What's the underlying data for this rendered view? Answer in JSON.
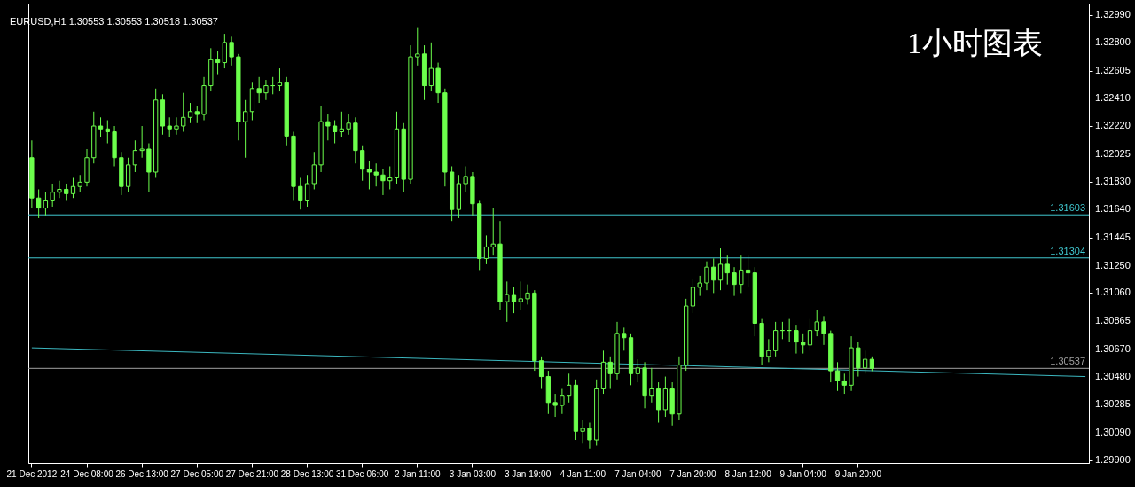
{
  "chart_data": {
    "type": "candlestick",
    "title": "EURUSD,H1  1.30553 1.30553 1.30518 1.30537",
    "annotations": [
      "1小时图表"
    ],
    "color": "#6cff4c",
    "categories": [
      "21 Dec 2012",
      null,
      null,
      null,
      null,
      null,
      null,
      null,
      "24 Dec 08:00",
      null,
      null,
      null,
      null,
      null,
      null,
      null,
      "26 Dec 13:00",
      null,
      null,
      null,
      null,
      null,
      null,
      null,
      "27 Dec 05:00",
      null,
      null,
      null,
      null,
      null,
      null,
      null,
      "27 Dec 21:00",
      null,
      null,
      null,
      null,
      null,
      null,
      null,
      "28 Dec 13:00",
      null,
      null,
      null,
      null,
      null,
      null,
      null,
      "31 Dec 06:00",
      null,
      null,
      null,
      null,
      null,
      null,
      null,
      "2 Jan 11:00",
      null,
      null,
      null,
      null,
      null,
      null,
      null,
      "3 Jan 03:00",
      null,
      null,
      null,
      null,
      null,
      null,
      null,
      "3 Jan 19:00",
      null,
      null,
      null,
      null,
      null,
      null,
      null,
      "4 Jan 11:00",
      null,
      null,
      null,
      null,
      null,
      null,
      null,
      "7 Jan 04:00",
      null,
      null,
      null,
      null,
      null,
      null,
      null,
      "7 Jan 20:00",
      null,
      null,
      null,
      null,
      null,
      null,
      null,
      "8 Jan 12:00",
      null,
      null,
      null,
      null,
      null,
      null,
      null,
      "9 Jan 04:00",
      null,
      null,
      null,
      null,
      null,
      null,
      null,
      "9 Jan 20:00",
      null,
      null,
      null,
      null,
      null,
      null,
      null,
      null,
      null,
      null,
      null,
      null,
      null,
      null,
      null,
      null,
      null,
      null,
      null,
      null,
      null,
      null,
      null,
      null,
      null,
      null,
      null,
      null,
      null,
      null,
      null,
      null,
      null
    ],
    "ohlc": [
      [
        1.32,
        1.3212,
        1.3165,
        1.3172
      ],
      [
        1.3172,
        1.3178,
        1.3158,
        1.3165
      ],
      [
        1.3165,
        1.3176,
        1.316,
        1.317
      ],
      [
        1.317,
        1.3182,
        1.3166,
        1.3176
      ],
      [
        1.3176,
        1.3184,
        1.3172,
        1.3178
      ],
      [
        1.3178,
        1.3182,
        1.317,
        1.3175
      ],
      [
        1.3175,
        1.3186,
        1.3172,
        1.318
      ],
      [
        1.318,
        1.3188,
        1.3176,
        1.3183
      ],
      [
        1.3183,
        1.3206,
        1.318,
        1.32
      ],
      [
        1.32,
        1.3232,
        1.3196,
        1.3222
      ],
      [
        1.3222,
        1.3228,
        1.3214,
        1.322
      ],
      [
        1.322,
        1.3226,
        1.321,
        1.3218
      ],
      [
        1.3218,
        1.3222,
        1.3194,
        1.32
      ],
      [
        1.32,
        1.3204,
        1.3174,
        1.318
      ],
      [
        1.318,
        1.32,
        1.3176,
        1.3195
      ],
      [
        1.3195,
        1.3212,
        1.319,
        1.3205
      ],
      [
        1.3205,
        1.3222,
        1.32,
        1.3206
      ],
      [
        1.3206,
        1.321,
        1.3176,
        1.319
      ],
      [
        1.319,
        1.3248,
        1.3186,
        1.324
      ],
      [
        1.324,
        1.3244,
        1.3216,
        1.3222
      ],
      [
        1.3222,
        1.3228,
        1.3214,
        1.322
      ],
      [
        1.322,
        1.3228,
        1.3216,
        1.3222
      ],
      [
        1.3222,
        1.3245,
        1.3218,
        1.3228
      ],
      [
        1.3228,
        1.3238,
        1.3224,
        1.3232
      ],
      [
        1.3232,
        1.3236,
        1.3224,
        1.323
      ],
      [
        1.323,
        1.3256,
        1.3226,
        1.325
      ],
      [
        1.325,
        1.3276,
        1.3246,
        1.3268
      ],
      [
        1.3268,
        1.3274,
        1.3258,
        1.3266
      ],
      [
        1.3266,
        1.3286,
        1.3262,
        1.328
      ],
      [
        1.328,
        1.3284,
        1.3264,
        1.327
      ],
      [
        1.327,
        1.3272,
        1.3212,
        1.3225
      ],
      [
        1.3225,
        1.324,
        1.32,
        1.3232
      ],
      [
        1.3232,
        1.3252,
        1.3226,
        1.3248
      ],
      [
        1.3248,
        1.3256,
        1.3238,
        1.3245
      ],
      [
        1.3245,
        1.3254,
        1.324,
        1.325
      ],
      [
        1.325,
        1.3256,
        1.3244,
        1.325
      ],
      [
        1.325,
        1.3262,
        1.3246,
        1.3252
      ],
      [
        1.3252,
        1.3256,
        1.3208,
        1.3215
      ],
      [
        1.3215,
        1.3218,
        1.317,
        1.318
      ],
      [
        1.318,
        1.3186,
        1.3164,
        1.317
      ],
      [
        1.317,
        1.3188,
        1.3166,
        1.3182
      ],
      [
        1.3182,
        1.3204,
        1.3178,
        1.3195
      ],
      [
        1.3195,
        1.3236,
        1.319,
        1.3225
      ],
      [
        1.3225,
        1.323,
        1.3212,
        1.3222
      ],
      [
        1.3222,
        1.3226,
        1.321,
        1.3218
      ],
      [
        1.3218,
        1.3232,
        1.3214,
        1.322
      ],
      [
        1.322,
        1.323,
        1.3216,
        1.3224
      ],
      [
        1.3224,
        1.3228,
        1.3196,
        1.3205
      ],
      [
        1.3205,
        1.3208,
        1.3184,
        1.3192
      ],
      [
        1.3192,
        1.3198,
        1.3178,
        1.319
      ],
      [
        1.319,
        1.3196,
        1.318,
        1.3188
      ],
      [
        1.3188,
        1.3192,
        1.3174,
        1.3184
      ],
      [
        1.3184,
        1.3194,
        1.3178,
        1.3186
      ],
      [
        1.3186,
        1.3232,
        1.3182,
        1.322
      ],
      [
        1.322,
        1.3224,
        1.3176,
        1.3185
      ],
      [
        1.3185,
        1.3278,
        1.3182,
        1.327
      ],
      [
        1.327,
        1.329,
        1.3264,
        1.3272
      ],
      [
        1.3272,
        1.3278,
        1.324,
        1.325
      ],
      [
        1.325,
        1.328,
        1.3246,
        1.3262
      ],
      [
        1.3262,
        1.3266,
        1.3238,
        1.3245
      ],
      [
        1.3245,
        1.3248,
        1.318,
        1.319
      ],
      [
        1.319,
        1.3194,
        1.3156,
        1.3164
      ],
      [
        1.3164,
        1.3188,
        1.3158,
        1.3182
      ],
      [
        1.3182,
        1.3194,
        1.3176,
        1.3187
      ],
      [
        1.3187,
        1.319,
        1.316,
        1.3168
      ],
      [
        1.3168,
        1.317,
        1.3122,
        1.313
      ],
      [
        1.313,
        1.3146,
        1.3126,
        1.3138
      ],
      [
        1.3138,
        1.3165,
        1.3132,
        1.314
      ],
      [
        1.314,
        1.3156,
        1.3094,
        1.31
      ],
      [
        1.31,
        1.3114,
        1.3086,
        1.3105
      ],
      [
        1.3105,
        1.311,
        1.3092,
        1.31
      ],
      [
        1.31,
        1.3114,
        1.3094,
        1.3102
      ],
      [
        1.3102,
        1.3112,
        1.3098,
        1.3106
      ],
      [
        1.3106,
        1.3108,
        1.3052,
        1.3059
      ],
      [
        1.3059,
        1.3062,
        1.304,
        1.3048
      ],
      [
        1.3048,
        1.3052,
        1.3022,
        1.303
      ],
      [
        1.303,
        1.3036,
        1.302,
        1.3028
      ],
      [
        1.3028,
        1.304,
        1.3022,
        1.3035
      ],
      [
        1.3035,
        1.305,
        1.303,
        1.3042
      ],
      [
        1.3042,
        1.3046,
        1.3004,
        1.301
      ],
      [
        1.301,
        1.3018,
        1.3002,
        1.3012
      ],
      [
        1.3012,
        1.3016,
        1.2998,
        1.3004
      ],
      [
        1.3004,
        1.3046,
        1.3,
        1.304
      ],
      [
        1.304,
        1.3066,
        1.3036,
        1.3058
      ],
      [
        1.3058,
        1.3062,
        1.304,
        1.305
      ],
      [
        1.305,
        1.3086,
        1.3046,
        1.3078
      ],
      [
        1.3078,
        1.3082,
        1.3066,
        1.3075
      ],
      [
        1.3075,
        1.3078,
        1.3042,
        1.305
      ],
      [
        1.305,
        1.306,
        1.3044,
        1.3054
      ],
      [
        1.3054,
        1.3058,
        1.3026,
        1.3035
      ],
      [
        1.3035,
        1.3054,
        1.303,
        1.304
      ],
      [
        1.304,
        1.3044,
        1.3016,
        1.3025
      ],
      [
        1.3025,
        1.3048,
        1.302,
        1.304
      ],
      [
        1.304,
        1.3044,
        1.3014,
        1.3022
      ],
      [
        1.3022,
        1.3062,
        1.3018,
        1.3056
      ],
      [
        1.3056,
        1.3102,
        1.3052,
        1.3097
      ],
      [
        1.3097,
        1.3116,
        1.3092,
        1.311
      ],
      [
        1.311,
        1.3118,
        1.3104,
        1.3113
      ],
      [
        1.3113,
        1.3128,
        1.3108,
        1.3124
      ],
      [
        1.3124,
        1.313,
        1.3106,
        1.3115
      ],
      [
        1.3115,
        1.3137,
        1.3108,
        1.3126
      ],
      [
        1.3126,
        1.3132,
        1.3112,
        1.312
      ],
      [
        1.312,
        1.3124,
        1.3104,
        1.3112
      ],
      [
        1.3112,
        1.3132,
        1.3106,
        1.3122
      ],
      [
        1.3122,
        1.3132,
        1.311,
        1.312
      ],
      [
        1.312,
        1.3124,
        1.3076,
        1.3085
      ],
      [
        1.3085,
        1.3088,
        1.3056,
        1.3062
      ],
      [
        1.3062,
        1.3074,
        1.3058,
        1.3066
      ],
      [
        1.3066,
        1.3086,
        1.3062,
        1.308
      ],
      [
        1.308,
        1.3086,
        1.3074,
        1.308
      ],
      [
        1.308,
        1.3088,
        1.3072,
        1.308
      ],
      [
        1.308,
        1.3084,
        1.3064,
        1.3072
      ],
      [
        1.3072,
        1.3078,
        1.3064,
        1.307
      ],
      [
        1.307,
        1.3088,
        1.3066,
        1.308
      ],
      [
        1.308,
        1.3094,
        1.3076,
        1.3086
      ],
      [
        1.3086,
        1.309,
        1.307,
        1.3078
      ],
      [
        1.3078,
        1.308,
        1.3044,
        1.3052
      ],
      [
        1.3052,
        1.3058,
        1.3038,
        1.3045
      ],
      [
        1.3045,
        1.305,
        1.3036,
        1.3042
      ],
      [
        1.3042,
        1.3076,
        1.3038,
        1.3068
      ],
      [
        1.3068,
        1.3072,
        1.3048,
        1.3054
      ],
      [
        1.3054,
        1.3066,
        1.305,
        1.306
      ],
      [
        1.306,
        1.3062,
        1.30518,
        1.30537
      ],
      null,
      null,
      null,
      null,
      null,
      null,
      null,
      null,
      null,
      null,
      null,
      null,
      null,
      null,
      null,
      null,
      null,
      null,
      null,
      null,
      null,
      null,
      null,
      null,
      null,
      null,
      null,
      null,
      null,
      null,
      null
    ],
    "series": [
      {
        "type": "line",
        "color": "#3cb8c0",
        "values": [
          1.3068,
          null,
          null,
          null,
          null,
          null,
          null,
          null,
          null,
          null,
          null,
          null,
          null,
          null,
          null,
          null,
          null,
          null,
          null,
          null,
          null,
          null,
          null,
          null,
          null,
          null,
          null,
          null,
          null,
          null,
          null,
          null,
          null,
          null,
          null,
          null,
          null,
          null,
          null,
          null,
          null,
          null,
          null,
          null,
          null,
          null,
          null,
          null,
          null,
          null,
          null,
          null,
          null,
          null,
          null,
          null,
          null,
          null,
          null,
          null,
          null,
          null,
          null,
          null,
          null,
          null,
          null,
          null,
          null,
          null,
          null,
          null,
          null,
          null,
          null,
          null,
          null,
          null,
          null,
          null,
          null,
          null,
          null,
          null,
          null,
          null,
          null,
          null,
          null,
          null,
          null,
          null,
          null,
          null,
          null,
          null,
          null,
          null,
          null,
          null,
          null,
          null,
          null,
          null,
          null,
          null,
          null,
          null,
          null,
          null,
          null,
          null,
          null,
          null,
          null,
          null,
          null,
          null,
          null,
          null,
          null,
          null,
          null,
          null,
          null,
          null,
          null,
          null,
          null,
          null,
          null,
          null,
          null,
          null,
          null,
          null,
          null,
          null,
          null,
          null,
          null,
          null,
          null,
          null,
          null,
          null,
          null,
          null,
          null,
          null,
          null,
          null,
          null,
          1.3048
        ]
      }
    ],
    "ylim": [
      1.2988,
      1.3307
    ],
    "yticks": [
      {
        "value": 1.299,
        "label": "1.29900"
      },
      {
        "value": 1.3009,
        "label": "1.30090"
      },
      1.30285,
      {
        "value": 1.3048,
        "label": "1.30480"
      },
      {
        "value": 1.3067,
        "label": "1.30670"
      },
      1.30865,
      {
        "value": 1.3106,
        "label": "1.31060"
      },
      {
        "value": 1.3125,
        "label": "1.31250"
      },
      1.31445,
      {
        "value": 1.3164,
        "label": "1.31640"
      },
      {
        "value": 1.3183,
        "label": "1.31830"
      },
      1.32025,
      {
        "value": 1.3222,
        "label": "1.32220"
      },
      {
        "value": 1.3241,
        "label": "1.32410"
      },
      1.32605,
      {
        "value": 1.328,
        "label": "1.32800"
      },
      {
        "value": 1.3299,
        "label": "1.32990"
      }
    ],
    "ref_lines": [
      {
        "axis": "y",
        "value": 1.31603,
        "label": "1.31603",
        "color": "#40c8d0"
      },
      {
        "axis": "y",
        "value": 1.31304,
        "label": "1.31304",
        "color": "#40c8d0"
      },
      {
        "axis": "y",
        "value": 1.30537,
        "label": "1.30537",
        "color": "#a0a0a0"
      }
    ]
  }
}
